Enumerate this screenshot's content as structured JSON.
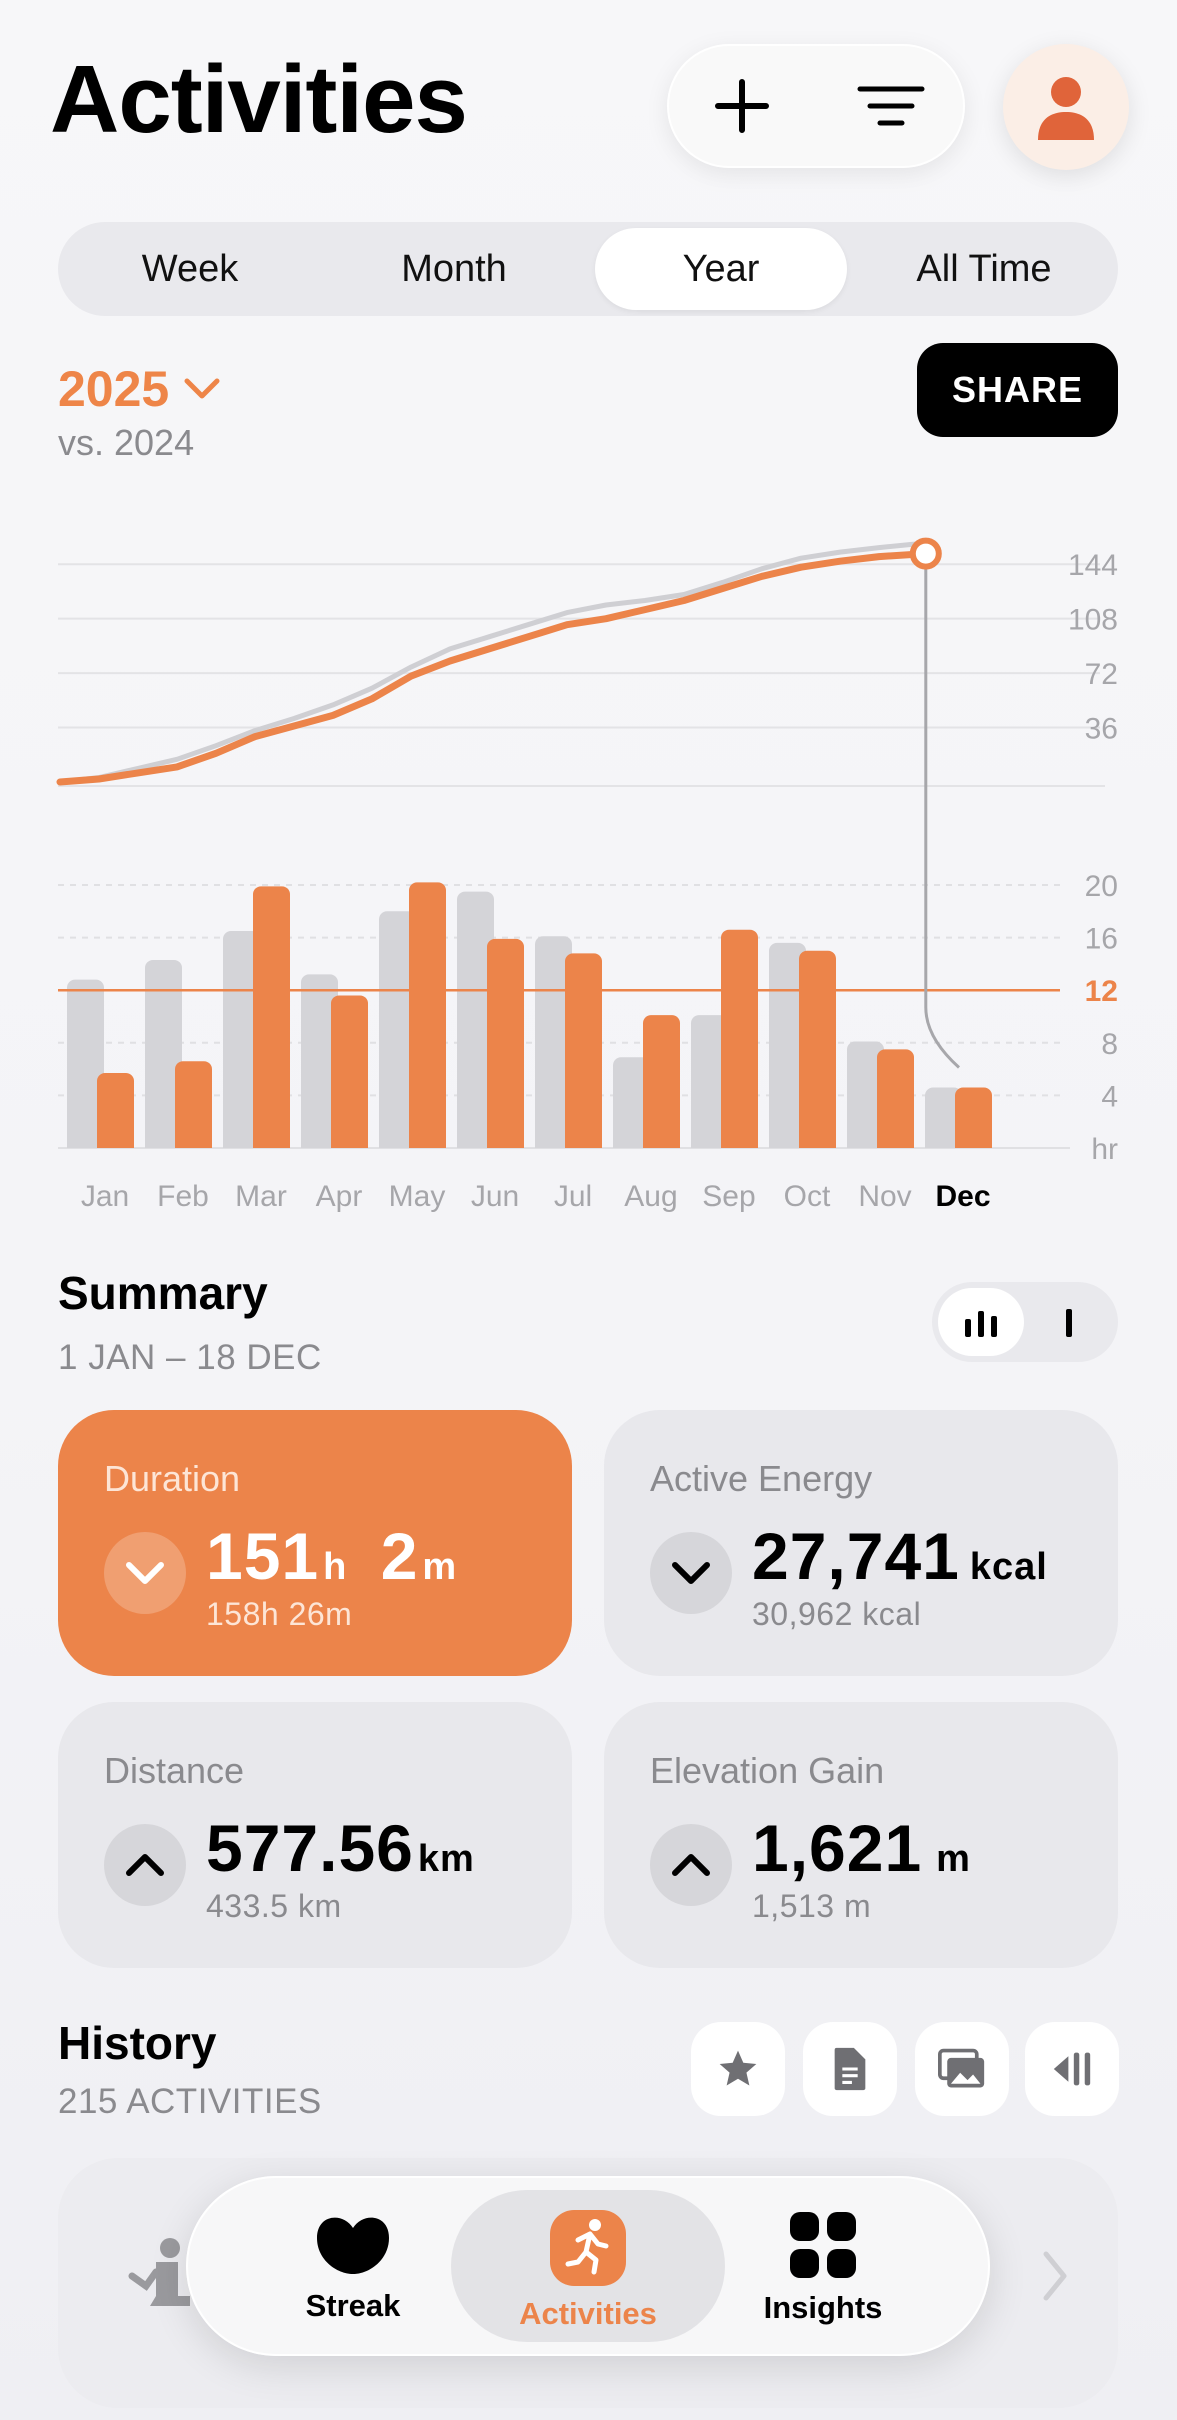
{
  "header": {
    "title": "Activities",
    "icons": [
      "plus-icon",
      "filter-icon",
      "person-icon"
    ]
  },
  "periods": [
    {
      "label": "Week",
      "active": false
    },
    {
      "label": "Month",
      "active": false
    },
    {
      "label": "Year",
      "active": true
    },
    {
      "label": "All Time",
      "active": false
    }
  ],
  "period_selector": {
    "year": "2025",
    "comparison": "vs. 2024",
    "share_label": "SHARE"
  },
  "colors": {
    "accent": "#ec844a",
    "previous": "#d4d4d8",
    "black": "#000000"
  },
  "chart_data": [
    {
      "type": "line",
      "name": "cumulative",
      "y_ticks": [
        "144",
        "108",
        "72",
        "36"
      ],
      "ylim": [
        0,
        160
      ],
      "series": [
        {
          "name": "2025",
          "color": "#ec844a",
          "points": [
            [
              0,
              0
            ],
            [
              0.5,
              2
            ],
            [
              1,
              6
            ],
            [
              1.5,
              10
            ],
            [
              2,
              19
            ],
            [
              2.5,
              30
            ],
            [
              3,
              37
            ],
            [
              3.5,
              44
            ],
            [
              4,
              55
            ],
            [
              4.5,
              70
            ],
            [
              5,
              80
            ],
            [
              5.5,
              88
            ],
            [
              6,
              96
            ],
            [
              6.5,
              104
            ],
            [
              7,
              108
            ],
            [
              7.5,
              114
            ],
            [
              8,
              120
            ],
            [
              8.5,
              128
            ],
            [
              9,
              136
            ],
            [
              9.5,
              142
            ],
            [
              10,
              146
            ],
            [
              10.5,
              149
            ],
            [
              11.1,
              151
            ]
          ]
        },
        {
          "name": "2024",
          "color": "#cfcfd3",
          "points": [
            [
              0,
              0
            ],
            [
              0.5,
              3
            ],
            [
              1,
              9
            ],
            [
              1.5,
              15
            ],
            [
              2,
              24
            ],
            [
              2.5,
              34
            ],
            [
              3,
              42
            ],
            [
              3.5,
              51
            ],
            [
              4,
              62
            ],
            [
              4.5,
              76
            ],
            [
              5,
              88
            ],
            [
              5.5,
              96
            ],
            [
              6,
              104
            ],
            [
              6.5,
              112
            ],
            [
              7,
              117
            ],
            [
              7.5,
              120
            ],
            [
              8,
              124
            ],
            [
              8.5,
              132
            ],
            [
              9,
              141
            ],
            [
              9.5,
              148
            ],
            [
              10,
              152
            ],
            [
              10.5,
              155
            ],
            [
              11.1,
              158
            ]
          ]
        }
      ],
      "marker": {
        "x": 11.1,
        "y": 151
      }
    },
    {
      "type": "bar",
      "name": "monthly",
      "categories": [
        "Jan",
        "Feb",
        "Mar",
        "Apr",
        "May",
        "Jun",
        "Jul",
        "Aug",
        "Sep",
        "Oct",
        "Nov",
        "Dec"
      ],
      "highlighted_category": "Dec",
      "y_ticks": [
        "20",
        "16",
        "12",
        "8",
        "4",
        "hr"
      ],
      "ylim": [
        0,
        20
      ],
      "average": 12,
      "average_label": "12",
      "series": [
        {
          "name": "2024",
          "color": "#d4d4d8",
          "values": [
            12.8,
            14.3,
            16.5,
            13.2,
            18.0,
            19.5,
            16.1,
            6.9,
            10.1,
            15.6,
            8.1,
            4.6
          ]
        },
        {
          "name": "2025",
          "color": "#ec844a",
          "values": [
            5.7,
            6.6,
            19.9,
            11.6,
            20.2,
            15.9,
            14.8,
            10.1,
            16.6,
            15.0,
            7.5,
            4.6
          ]
        }
      ]
    }
  ],
  "summary": {
    "title": "Summary",
    "range": "1 JAN – 18 DEC",
    "cards": [
      {
        "label": "Duration",
        "value": "151",
        "unit": "h",
        "value2": "2",
        "unit2": "m",
        "previous": "158h 26m",
        "trend": "down",
        "highlight": true
      },
      {
        "label": "Active Energy",
        "value": "27,741",
        "unit": "kcal",
        "previous": "30,962 kcal",
        "trend": "down",
        "highlight": false
      },
      {
        "label": "Distance",
        "value": "577.56",
        "unit": "km",
        "previous": "433.5 km",
        "trend": "up",
        "highlight": false
      },
      {
        "label": "Elevation Gain",
        "value": "1,621",
        "unit": "m",
        "previous": "1,513 m",
        "trend": "up",
        "highlight": false
      }
    ]
  },
  "history": {
    "title": "History",
    "count": "215 ACTIVITIES",
    "icons": [
      "star-icon",
      "document-icon",
      "photos-icon",
      "compare-icon"
    ]
  },
  "tabbar": {
    "items": [
      {
        "label": "Streak",
        "icon": "streak-icon",
        "active": false
      },
      {
        "label": "Activities",
        "icon": "running-icon",
        "active": true
      },
      {
        "label": "Insights",
        "icon": "grid-icon",
        "active": false
      }
    ]
  }
}
